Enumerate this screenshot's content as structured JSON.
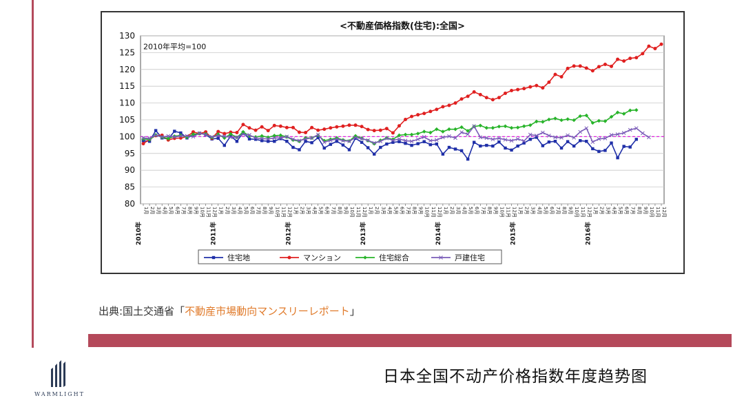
{
  "chart_data": {
    "type": "line",
    "title": "<不動産価格指数(住宅):全国>",
    "annotation": "2010年平均=100",
    "ylim": [
      80,
      130
    ],
    "yticks": [
      80,
      85,
      90,
      95,
      100,
      105,
      110,
      115,
      120,
      125,
      130
    ],
    "grid": true,
    "legend_position": "bottom",
    "reference_line": 100,
    "year_labels": [
      {
        "label": "2010年",
        "month_index": 0
      },
      {
        "label": "2011年",
        "month_index": 12
      },
      {
        "label": "2012年",
        "month_index": 24
      },
      {
        "label": "2013年",
        "month_index": 36
      },
      {
        "label": "2014年",
        "month_index": 48
      },
      {
        "label": "2015年",
        "month_index": 60
      },
      {
        "label": "2016年",
        "month_index": 72
      }
    ],
    "series": [
      {
        "name": "住宅地",
        "color": "#1f2fa8",
        "marker": "square",
        "values": [
          98.8,
          98.6,
          101.8,
          99.6,
          99.3,
          101.6,
          101.1,
          99.6,
          100.5,
          101.0,
          100.6,
          99.3,
          99.5,
          97.4,
          100.2,
          98.6,
          101.2,
          99.3,
          99.2,
          98.8,
          98.6,
          98.6,
          99.4,
          98.6,
          96.8,
          96.1,
          98.6,
          98.2,
          99.7,
          96.6,
          97.7,
          98.6,
          97.5,
          96.1,
          99.5,
          98.3,
          96.7,
          94.8,
          96.8,
          97.8,
          98.3,
          98.5,
          98.0,
          97.4,
          97.9,
          98.5,
          97.6,
          97.8,
          94.8,
          96.8,
          96.3,
          95.8,
          93.3,
          98.3,
          97.2,
          97.4,
          97.2,
          98.4,
          96.6,
          96.0,
          97.2,
          98.1,
          99.2,
          99.8,
          97.3,
          98.4,
          98.6,
          96.6,
          98.5,
          97.2,
          98.8,
          98.6,
          96.4,
          95.6,
          95.9,
          98.1,
          93.7,
          97.1,
          96.9,
          99.2
        ]
      },
      {
        "name": "マンション",
        "color": "#e02020",
        "marker": "circle",
        "values": [
          97.9,
          99.2,
          100.3,
          100.4,
          99.0,
          99.5,
          99.6,
          100.0,
          101.4,
          100.9,
          101.4,
          99.5,
          101.5,
          100.9,
          101.3,
          101.2,
          103.6,
          102.6,
          101.9,
          102.9,
          101.8,
          103.3,
          103.1,
          102.7,
          102.7,
          101.3,
          101.2,
          102.7,
          101.9,
          102.2,
          102.6,
          102.9,
          103.1,
          103.4,
          103.4,
          103.0,
          102.1,
          101.8,
          101.9,
          102.4,
          101.1,
          103.2,
          105.1,
          106.0,
          106.5,
          106.9,
          107.5,
          108.1,
          108.9,
          109.3,
          110.0,
          111.2,
          112.0,
          113.3,
          112.5,
          111.6,
          111.0,
          111.6,
          112.9,
          113.7,
          114.0,
          114.3,
          114.8,
          115.2,
          114.5,
          116.2,
          118.5,
          117.8,
          120.3,
          121.0,
          121.0,
          120.4,
          119.6,
          120.8,
          121.5,
          120.9,
          123.0,
          122.5,
          123.3,
          123.5,
          124.7,
          126.9,
          126.2,
          127.5
        ]
      },
      {
        "name": "住宅総合",
        "color": "#28b42a",
        "marker": "diamond",
        "values": [
          99.3,
          99.1,
          100.5,
          99.8,
          99.4,
          100.1,
          100.4,
          99.8,
          100.7,
          100.9,
          100.8,
          99.7,
          100.7,
          99.6,
          100.8,
          99.8,
          101.4,
          100.2,
          99.9,
          100.2,
          99.8,
          100.3,
          100.4,
          99.9,
          99.0,
          98.6,
          99.6,
          99.6,
          100.4,
          98.8,
          99.2,
          99.6,
          99.0,
          98.7,
          100.2,
          99.5,
          98.8,
          97.9,
          98.9,
          99.6,
          99.2,
          100.4,
          100.6,
          100.6,
          100.9,
          101.5,
          101.2,
          102.2,
          101.5,
          102.2,
          102.2,
          102.8,
          101.7,
          103.0,
          103.3,
          102.6,
          102.6,
          103.0,
          103.1,
          102.6,
          102.7,
          103.1,
          103.4,
          104.5,
          104.4,
          105.1,
          105.4,
          104.9,
          105.2,
          104.9,
          106.1,
          106.3,
          104.1,
          104.7,
          104.6,
          105.9,
          107.2,
          106.8,
          107.8,
          107.9
        ]
      },
      {
        "name": "戸建住宅",
        "color": "#7a5cb8",
        "marker": "cross",
        "values": [
          99.6,
          99.5,
          100.4,
          99.9,
          100.2,
          99.9,
          100.2,
          100.2,
          100.0,
          101.0,
          100.6,
          99.9,
          100.3,
          100.1,
          99.8,
          99.8,
          100.7,
          100.5,
          99.6,
          99.4,
          99.3,
          99.6,
          99.6,
          100.0,
          99.2,
          98.8,
          99.3,
          99.6,
          100.6,
          98.3,
          98.9,
          99.3,
          98.8,
          98.6,
          99.7,
          99.4,
          98.9,
          98.1,
          98.6,
          99.5,
          98.9,
          99.3,
          98.8,
          98.6,
          99.2,
          99.9,
          98.8,
          99.0,
          99.8,
          100.1,
          99.6,
          101.3,
          100.7,
          103.1,
          99.8,
          99.6,
          99.2,
          99.5,
          99.1,
          98.8,
          99.3,
          98.7,
          100.6,
          100.3,
          101.2,
          100.3,
          99.8,
          99.7,
          100.4,
          99.7,
          101.4,
          102.5,
          98.4,
          99.3,
          99.5,
          100.5,
          100.7,
          101.1,
          102.0,
          102.5,
          101.0,
          99.8
        ]
      }
    ]
  },
  "source": {
    "prefix": "出典:国土交通省「",
    "link": "不動産市場動向マンスリーレポート",
    "suffix": "」"
  },
  "caption": "日本全国不动产价格指数年度趋势图",
  "logo": {
    "brand": "WARMLIGHT"
  },
  "colors": {
    "accent": "#b4495a",
    "reference_line": "#e020e0",
    "link": "#e07a2a"
  }
}
